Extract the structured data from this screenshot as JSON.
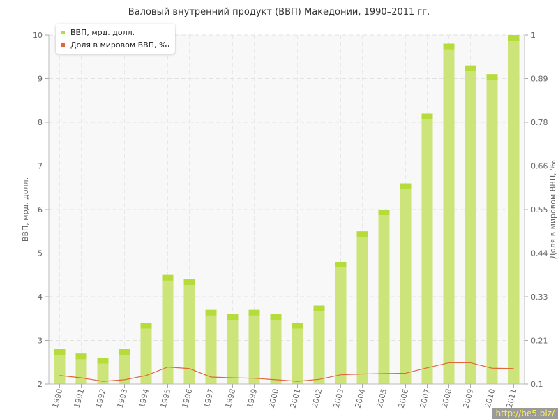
{
  "chart_data": {
    "type": "bar",
    "title": "Валовый внутренний продукт (ВВП) Македонии, 1990–2011 гг.",
    "ylabel": "ВВП, мрд. долл.",
    "y2label": "Доля в мировом ВВП, ‰",
    "ylim": [
      2,
      10
    ],
    "y2lim": [
      0.1,
      1
    ],
    "yticks": [
      "2",
      "3",
      "4",
      "5",
      "6",
      "7",
      "8",
      "9",
      "10"
    ],
    "y2ticks": [
      "0.1",
      "0.21",
      "0.33",
      "0.44",
      "0.55",
      "0.66",
      "0.78",
      "0.89",
      "1"
    ],
    "grid": true,
    "legend_position": "top-left",
    "categories": [
      "1990",
      "1991",
      "1992",
      "1993",
      "1994",
      "1995",
      "1996",
      "1997",
      "1998",
      "1999",
      "2000",
      "2001",
      "2002",
      "2003",
      "2004",
      "2005",
      "2006",
      "2007",
      "2008",
      "2009",
      "2010",
      "2011"
    ],
    "series": [
      {
        "name": "ВВП, мрд. долл.",
        "kind": "bar",
        "axis": "left",
        "color": "#b5dc3a",
        "values": [
          2.8,
          2.7,
          2.6,
          2.8,
          3.4,
          4.5,
          4.4,
          3.7,
          3.6,
          3.7,
          3.6,
          3.4,
          3.8,
          4.8,
          5.5,
          6.0,
          6.6,
          8.2,
          9.8,
          9.3,
          9.1,
          10.0
        ]
      },
      {
        "name": "Доля в мировом ВВП, ‰",
        "kind": "line",
        "axis": "right",
        "color": "#e0673a",
        "values": [
          0.122,
          0.116,
          0.107,
          0.111,
          0.122,
          0.144,
          0.14,
          0.118,
          0.116,
          0.115,
          0.111,
          0.107,
          0.112,
          0.124,
          0.126,
          0.127,
          0.128,
          0.142,
          0.155,
          0.155,
          0.141,
          0.14
        ]
      }
    ]
  },
  "watermark": "http://be5.biz/"
}
